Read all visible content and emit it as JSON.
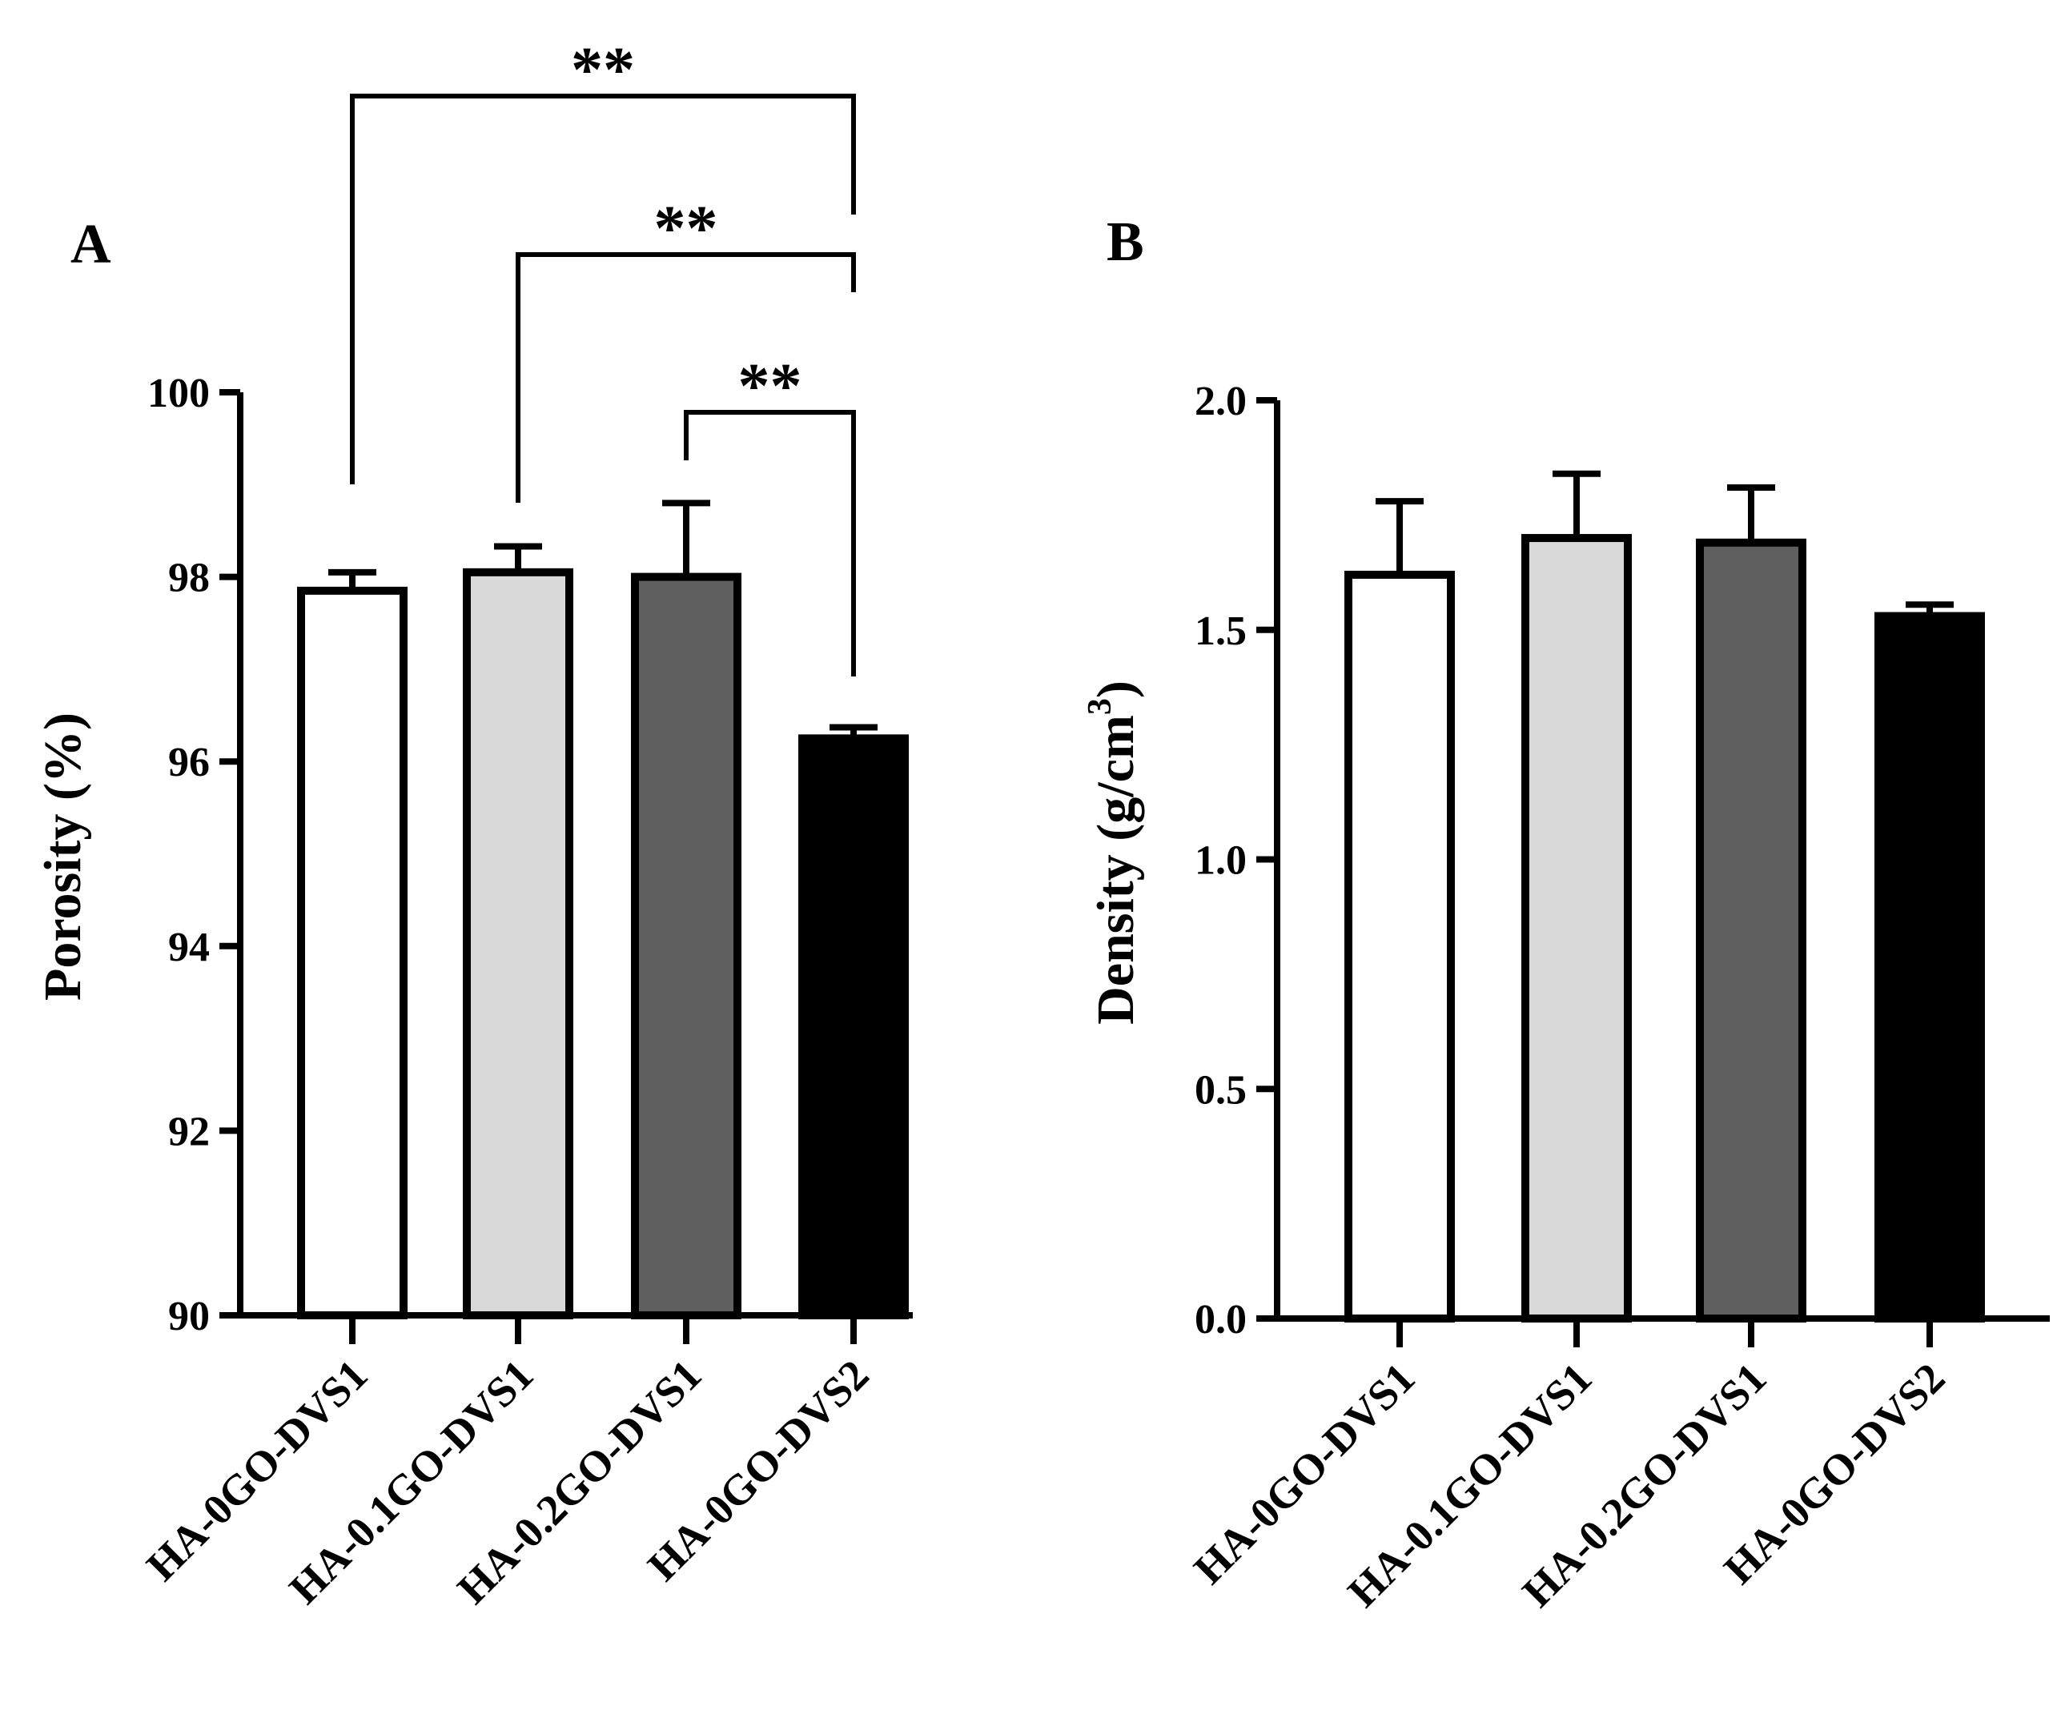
{
  "chart_data": [
    {
      "panel": "A",
      "type": "bar",
      "ylabel": "Porosity (%)",
      "categories": [
        "HA-0GO-DVS1",
        "HA-0.1GO-DVS1",
        "HA-0.2GO-DVS1",
        "HA-0GO-DVS2"
      ],
      "values": [
        97.85,
        98.05,
        98.0,
        96.25
      ],
      "errors": [
        0.2,
        0.28,
        0.8,
        0.12
      ],
      "ylim": [
        90,
        100
      ],
      "yticks": [
        "90",
        "92",
        "94",
        "96",
        "98",
        "100"
      ],
      "bar_colors": [
        "#ffffff",
        "#d9d9d9",
        "#5f5f5f",
        "#000000"
      ],
      "significance": [
        {
          "from": 0,
          "to": 3,
          "label": "**"
        },
        {
          "from": 1,
          "to": 3,
          "label": "**"
        },
        {
          "from": 2,
          "to": 3,
          "label": "**"
        }
      ]
    },
    {
      "panel": "B",
      "type": "bar",
      "ylabel": "Density (g/cm",
      "ylabel_sup": "3",
      "ylabel_end": ")",
      "categories": [
        "HA-0GO-DVS1",
        "HA-0.1GO-DVS1",
        "HA-0.2GO-DVS1",
        "HA-0GO-DVS2"
      ],
      "values": [
        1.62,
        1.7,
        1.69,
        1.53
      ],
      "errors": [
        0.16,
        0.14,
        0.12,
        0.025
      ],
      "ylim": [
        0,
        2.0
      ],
      "yticks": [
        "0.0",
        "0.5",
        "1.0",
        "1.5",
        "2.0"
      ],
      "bar_colors": [
        "#ffffff",
        "#d9d9d9",
        "#5f5f5f",
        "#000000"
      ]
    }
  ]
}
